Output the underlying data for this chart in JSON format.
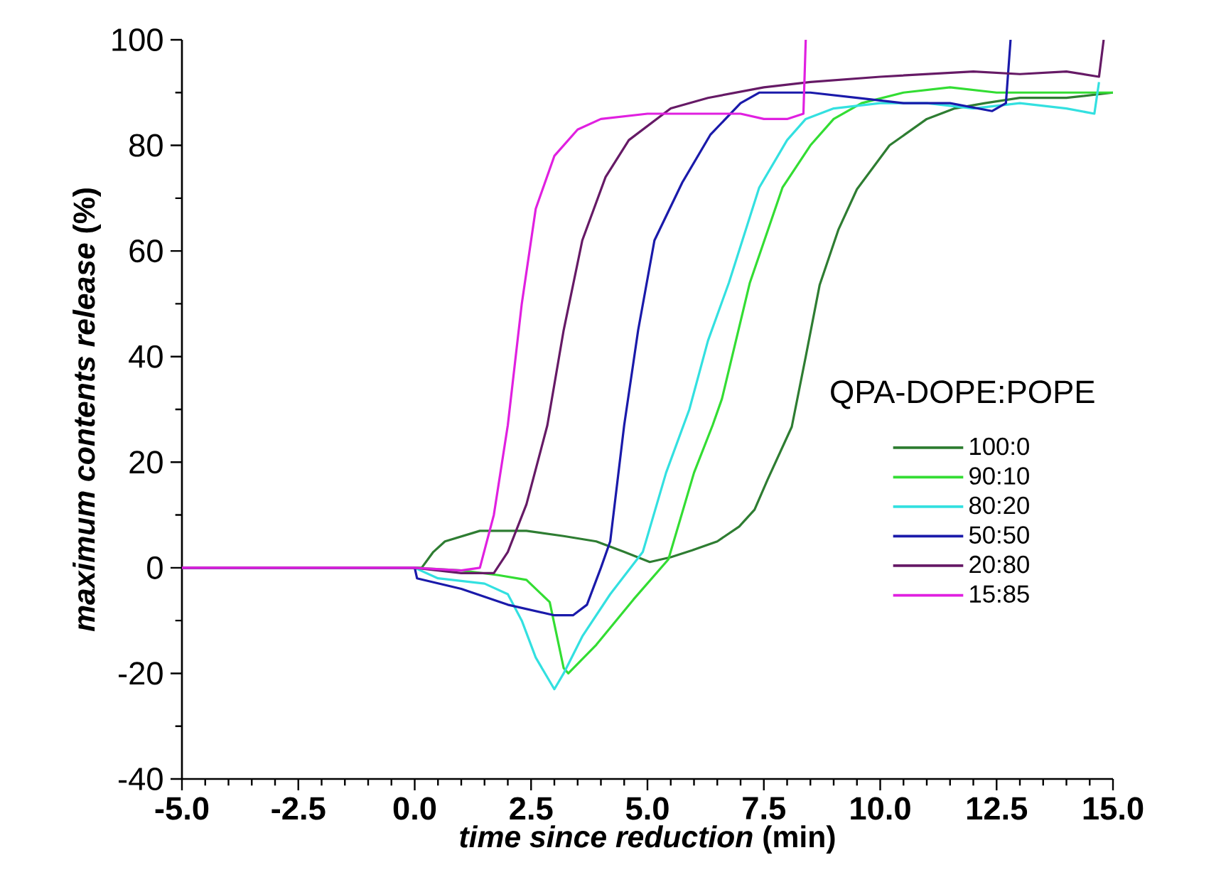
{
  "chart_data": {
    "type": "line",
    "xlabel": "*time since reduction* (min)",
    "ylabel": "*maximum contents release* (%)",
    "legend_title": "QPA-DOPE:POPE",
    "xlim": [
      -5,
      15
    ],
    "ylim": [
      -40,
      100
    ],
    "xticks": [
      {
        "value": -5,
        "label": "-5.0"
      },
      {
        "value": -2.5,
        "label": "-2.5"
      },
      {
        "value": 0,
        "label": "0.0"
      },
      {
        "value": 2.5,
        "label": "2.5"
      },
      {
        "value": 5,
        "label": "5.0"
      },
      {
        "value": 7.5,
        "label": "7.5"
      },
      {
        "value": 10,
        "label": "10.0"
      },
      {
        "value": 12.5,
        "label": "12.5"
      },
      {
        "value": 15,
        "label": "15.0"
      }
    ],
    "yticks": [
      -40,
      -20,
      0,
      20,
      40,
      60,
      80,
      100
    ],
    "grid": false,
    "legend": "right",
    "line_style": "solid",
    "series": [
      {
        "name": "100:0",
        "color": "#2e7d32",
        "x": [
          -5,
          0,
          0.15,
          0.4,
          0.65,
          1.4,
          2.4,
          3.2,
          3.9,
          4.5,
          5.05,
          5.5,
          5.96,
          6.5,
          6.97,
          7.3,
          7.58,
          8.1,
          8.4,
          8.7,
          9.1,
          9.5,
          10.2,
          11.0,
          11.6,
          12.25,
          13,
          14,
          15
        ],
        "values": [
          0,
          0,
          0,
          3,
          5,
          7,
          7,
          6,
          5,
          3,
          1.1,
          2,
          3.3,
          5,
          7.8,
          11,
          16.7,
          26.7,
          40,
          53.6,
          64,
          71.7,
          80,
          85,
          87,
          88,
          89,
          89,
          90
        ]
      },
      {
        "name": "90:10",
        "color": "#33dd33",
        "x": [
          -5,
          0,
          1.0,
          1.8,
          2.4,
          2.9,
          3.2,
          3.3,
          3.9,
          4.7,
          5.45,
          6.0,
          6.4,
          6.6,
          7.2,
          7.9,
          8.5,
          9.0,
          9.6,
          10.5,
          11.5,
          12.5,
          13.5,
          14.5,
          15
        ],
        "values": [
          0,
          0,
          -0.5,
          -1.4,
          -2.3,
          -6.5,
          -19,
          -20,
          -14.6,
          -6,
          1.6,
          18,
          27,
          32,
          54,
          72,
          80,
          85,
          88,
          90,
          91,
          90,
          90,
          90,
          90
        ]
      },
      {
        "name": "80:20",
        "color": "#33e0e0",
        "x": [
          -5,
          0,
          0.5,
          1.5,
          2.0,
          2.3,
          2.6,
          3.0,
          3.2,
          3.6,
          4.2,
          4.9,
          5.4,
          5.9,
          6.3,
          6.75,
          7.4,
          8.0,
          8.4,
          9.0,
          10,
          11,
          12,
          13,
          14,
          14.6,
          14.7
        ],
        "values": [
          0,
          0,
          -2,
          -3,
          -5,
          -10,
          -17,
          -23,
          -20,
          -13,
          -5,
          3,
          18,
          30,
          43,
          54,
          72,
          81,
          85,
          87,
          88,
          88,
          87,
          88,
          87,
          86,
          92
        ]
      },
      {
        "name": "50:50",
        "color": "#1a1aaa",
        "x": [
          -5,
          0,
          0.05,
          1.0,
          2.0,
          3.0,
          3.4,
          3.7,
          4.0,
          4.2,
          4.5,
          4.8,
          5.15,
          5.75,
          6.35,
          7.0,
          7.4,
          8.5,
          9.5,
          10.5,
          11.5,
          12.4,
          12.7,
          12.8
        ],
        "values": [
          0,
          0,
          -2,
          -4,
          -7,
          -9,
          -9,
          -7,
          0,
          5,
          27,
          45,
          62,
          73,
          82,
          88,
          90,
          90,
          89,
          88,
          88,
          86.5,
          88,
          100
        ]
      },
      {
        "name": "20:80",
        "color": "#661a66",
        "x": [
          -5,
          0,
          1.0,
          1.7,
          2.0,
          2.4,
          2.85,
          3.2,
          3.6,
          4.1,
          4.6,
          5.5,
          6.3,
          7.5,
          8.5,
          10,
          12,
          13,
          14,
          14.7,
          14.8
        ],
        "values": [
          0,
          0,
          -1,
          -1,
          3,
          12,
          27,
          45,
          62,
          74,
          81,
          87,
          89,
          91,
          92,
          93,
          94,
          93.5,
          94,
          93,
          100
        ]
      },
      {
        "name": "15:85",
        "color": "#e020e0",
        "x": [
          -5,
          0,
          1.0,
          1.4,
          1.7,
          2.0,
          2.3,
          2.6,
          3.0,
          3.5,
          4.0,
          5,
          6,
          7,
          7.5,
          8.0,
          8.35,
          8.4
        ],
        "values": [
          0,
          0,
          -0.5,
          0,
          10,
          27,
          50,
          68,
          78,
          83,
          85,
          86,
          86,
          86,
          85,
          85,
          86,
          100
        ]
      }
    ]
  }
}
